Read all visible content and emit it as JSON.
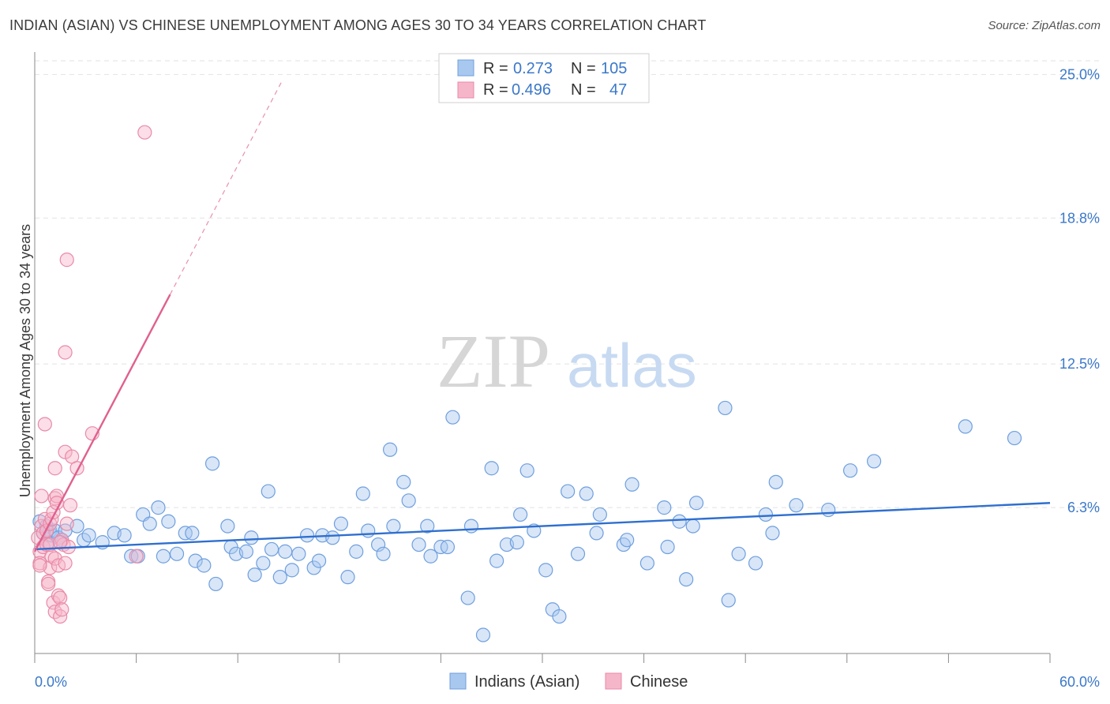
{
  "title": "INDIAN (ASIAN) VS CHINESE UNEMPLOYMENT AMONG AGES 30 TO 34 YEARS CORRELATION CHART",
  "source": "Source: ZipAtlas.com",
  "watermark": {
    "zip": "ZIP",
    "atlas": "atlas"
  },
  "colors": {
    "blue_fill": "#a9c8ef",
    "blue_stroke": "#6f9fde",
    "blue_line": "#2f6fcf",
    "pink_fill": "#f6b6ca",
    "pink_stroke": "#e98aa8",
    "pink_line": "#e0608e",
    "grid": "#e2e2e2",
    "tick_text": "#3b78c9"
  },
  "legend": {
    "rows": [
      {
        "r_label": "R =",
        "r_value": "0.273",
        "n_label": "N =",
        "n_value": "105"
      },
      {
        "r_label": "R =",
        "r_value": "0.496",
        "n_label": "N =",
        "n_value": "47"
      }
    ]
  },
  "chart_data": {
    "type": "scatter",
    "title": "INDIAN (ASIAN) VS CHINESE UNEMPLOYMENT AMONG AGES 30 TO 34 YEARS CORRELATION CHART",
    "xlabel": "",
    "ylabel": "Unemployment Among Ages 30 to 34 years",
    "xlim": [
      0,
      60
    ],
    "ylim": [
      0,
      26
    ],
    "x_tick_labels": [
      "0.0%",
      "60.0%"
    ],
    "y_ticks": [
      6.3,
      12.5,
      18.8,
      25.0
    ],
    "y_tick_labels": [
      "6.3%",
      "12.5%",
      "18.8%",
      "25.0%"
    ],
    "legend_position": "top-center",
    "series": [
      {
        "name": "Indians (Asian)",
        "r": 0.273,
        "n": 105,
        "trend": {
          "x": [
            0,
            60
          ],
          "y": [
            4.5,
            6.5
          ],
          "style": "solid"
        },
        "points": [
          [
            0.3,
            5.7
          ],
          [
            0.5,
            5.2
          ],
          [
            0.7,
            5.5
          ],
          [
            0.8,
            4.8
          ],
          [
            0.9,
            5.3
          ],
          [
            1.0,
            5.1
          ],
          [
            1.2,
            5.3
          ],
          [
            1.4,
            5.0
          ],
          [
            1.6,
            4.9
          ],
          [
            1.8,
            5.3
          ],
          [
            2.5,
            5.5
          ],
          [
            2.9,
            4.9
          ],
          [
            3.2,
            5.1
          ],
          [
            4.0,
            4.8
          ],
          [
            4.7,
            5.2
          ],
          [
            5.3,
            5.1
          ],
          [
            5.7,
            4.2
          ],
          [
            6.1,
            4.2
          ],
          [
            6.4,
            6.0
          ],
          [
            6.8,
            5.6
          ],
          [
            7.3,
            6.3
          ],
          [
            7.6,
            4.2
          ],
          [
            7.9,
            5.7
          ],
          [
            8.4,
            4.3
          ],
          [
            8.9,
            5.2
          ],
          [
            9.3,
            5.2
          ],
          [
            9.5,
            4.0
          ],
          [
            10.0,
            3.8
          ],
          [
            10.5,
            8.2
          ],
          [
            10.7,
            3.0
          ],
          [
            11.4,
            5.5
          ],
          [
            11.6,
            4.6
          ],
          [
            11.9,
            4.3
          ],
          [
            12.5,
            4.4
          ],
          [
            12.8,
            5.0
          ],
          [
            13.0,
            3.4
          ],
          [
            13.5,
            3.9
          ],
          [
            13.8,
            7.0
          ],
          [
            14.0,
            4.5
          ],
          [
            14.5,
            3.3
          ],
          [
            14.8,
            4.4
          ],
          [
            15.2,
            3.6
          ],
          [
            15.6,
            4.3
          ],
          [
            16.1,
            5.1
          ],
          [
            16.5,
            3.7
          ],
          [
            16.8,
            4.0
          ],
          [
            17.0,
            5.1
          ],
          [
            17.6,
            5.0
          ],
          [
            18.1,
            5.6
          ],
          [
            18.5,
            3.3
          ],
          [
            19.0,
            4.4
          ],
          [
            19.4,
            6.9
          ],
          [
            19.7,
            5.3
          ],
          [
            20.3,
            4.7
          ],
          [
            20.6,
            4.3
          ],
          [
            21.0,
            8.8
          ],
          [
            21.2,
            5.5
          ],
          [
            21.8,
            7.4
          ],
          [
            22.1,
            6.6
          ],
          [
            22.7,
            4.7
          ],
          [
            23.2,
            5.5
          ],
          [
            23.4,
            4.2
          ],
          [
            24.0,
            4.6
          ],
          [
            24.4,
            4.6
          ],
          [
            24.7,
            10.2
          ],
          [
            25.6,
            2.4
          ],
          [
            25.8,
            5.5
          ],
          [
            26.5,
            0.8
          ],
          [
            27.0,
            8.0
          ],
          [
            27.3,
            4.0
          ],
          [
            27.9,
            4.7
          ],
          [
            28.5,
            4.8
          ],
          [
            28.7,
            6.0
          ],
          [
            29.1,
            7.9
          ],
          [
            29.5,
            5.3
          ],
          [
            30.2,
            3.6
          ],
          [
            30.6,
            1.9
          ],
          [
            31.0,
            1.6
          ],
          [
            31.5,
            7.0
          ],
          [
            32.1,
            4.3
          ],
          [
            32.6,
            6.9
          ],
          [
            33.2,
            5.2
          ],
          [
            33.4,
            6.0
          ],
          [
            34.8,
            4.7
          ],
          [
            35.0,
            4.9
          ],
          [
            35.3,
            7.3
          ],
          [
            36.2,
            3.9
          ],
          [
            37.2,
            6.3
          ],
          [
            37.4,
            4.6
          ],
          [
            38.1,
            5.7
          ],
          [
            38.5,
            3.2
          ],
          [
            38.9,
            5.5
          ],
          [
            39.1,
            6.5
          ],
          [
            40.8,
            10.6
          ],
          [
            41.0,
            2.3
          ],
          [
            41.6,
            4.3
          ],
          [
            42.6,
            3.9
          ],
          [
            43.2,
            6.0
          ],
          [
            43.6,
            5.2
          ],
          [
            43.8,
            7.4
          ],
          [
            45.0,
            6.4
          ],
          [
            46.9,
            6.2
          ],
          [
            48.2,
            7.9
          ],
          [
            49.6,
            8.3
          ],
          [
            55.0,
            9.8
          ],
          [
            57.9,
            9.3
          ]
        ]
      },
      {
        "name": "Chinese",
        "r": 0.496,
        "n": 47,
        "trend": {
          "x": [
            0,
            8
          ],
          "y": [
            4.4,
            15.5
          ],
          "style": "solid",
          "extension": {
            "x": [
              8,
              14.6
            ],
            "y": [
              15.5,
              24.7
            ],
            "style": "dashed"
          }
        },
        "points": [
          [
            0.2,
            5.0
          ],
          [
            0.3,
            4.4
          ],
          [
            0.3,
            3.9
          ],
          [
            0.4,
            6.8
          ],
          [
            0.4,
            5.5
          ],
          [
            0.5,
            4.6
          ],
          [
            0.5,
            5.2
          ],
          [
            0.6,
            9.9
          ],
          [
            0.6,
            5.8
          ],
          [
            0.7,
            5.3
          ],
          [
            0.7,
            4.7
          ],
          [
            0.8,
            3.1
          ],
          [
            0.8,
            3.0
          ],
          [
            0.9,
            3.7
          ],
          [
            0.9,
            5.6
          ],
          [
            1.0,
            4.2
          ],
          [
            1.0,
            5.8
          ],
          [
            1.1,
            2.2
          ],
          [
            1.1,
            6.1
          ],
          [
            1.2,
            1.8
          ],
          [
            1.2,
            4.1
          ],
          [
            1.2,
            6.7
          ],
          [
            1.2,
            8.0
          ],
          [
            1.3,
            6.8
          ],
          [
            1.3,
            6.5
          ],
          [
            1.4,
            3.8
          ],
          [
            1.4,
            2.5
          ],
          [
            1.5,
            2.4
          ],
          [
            1.5,
            1.6
          ],
          [
            1.6,
            4.9
          ],
          [
            1.6,
            1.9
          ],
          [
            1.7,
            4.7
          ],
          [
            1.8,
            3.9
          ],
          [
            1.8,
            8.7
          ],
          [
            1.8,
            13.0
          ],
          [
            1.9,
            5.6
          ],
          [
            1.9,
            17.0
          ],
          [
            2.0,
            4.6
          ],
          [
            2.1,
            6.4
          ],
          [
            2.2,
            8.5
          ],
          [
            2.5,
            8.0
          ],
          [
            3.4,
            9.5
          ],
          [
            6.0,
            4.2
          ],
          [
            6.5,
            22.5
          ],
          [
            0.3,
            3.8
          ],
          [
            0.9,
            4.7
          ],
          [
            1.5,
            4.8
          ]
        ]
      }
    ]
  }
}
